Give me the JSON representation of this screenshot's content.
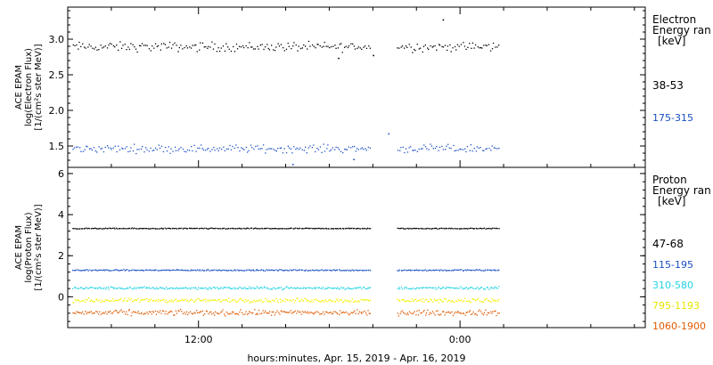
{
  "chart_data": [
    {
      "type": "scatter",
      "ylabel_lines": [
        "ACE EPAM",
        "log(Electron Flux)",
        "[1/(cm²s ster MeV)]"
      ],
      "ylim": [
        1.2,
        3.45
      ],
      "yticks": [
        1.5,
        2.0,
        2.5,
        3.0
      ],
      "ytick_labels": [
        "1.5",
        "2.0",
        "2.5",
        "3.0"
      ],
      "legend_title_lines": [
        "Electron",
        "Energy ran",
        "[keV]"
      ],
      "series": [
        {
          "name": "38-53",
          "color": "#000000",
          "mean": 2.9,
          "spread": 0.06,
          "outliers": [
            [
              18.4,
              2.74
            ],
            [
              20.0,
              2.78
            ],
            [
              23.2,
              3.28
            ]
          ]
        },
        {
          "name": "175-315",
          "color": "#1a4fc4",
          "mean": 1.47,
          "spread": 0.05,
          "outliers": [
            [
              16.3,
              1.25
            ],
            [
              20.7,
              1.68
            ],
            [
              19.1,
              1.32
            ]
          ]
        }
      ]
    },
    {
      "type": "scatter",
      "ylabel_lines": [
        "ACE EPAM",
        "log(Proton Flux)",
        "[1/(cm²s ster MeV)]"
      ],
      "ylim": [
        -1.5,
        6.3
      ],
      "yticks": [
        0,
        2,
        4,
        6
      ],
      "ytick_labels": [
        "0",
        "2",
        "4",
        "6"
      ],
      "legend_title_lines": [
        "Proton",
        "Energy ran",
        "[keV]"
      ],
      "series": [
        {
          "name": "47-68",
          "color": "#000000",
          "mean": 3.35,
          "spread": 0.02
        },
        {
          "name": "115-195",
          "color": "#1a4fc4",
          "mean": 1.32,
          "spread": 0.03
        },
        {
          "name": "310-580",
          "color": "#22d4e0",
          "mean": 0.45,
          "spread": 0.06
        },
        {
          "name": "795-1193",
          "color": "#f2f200",
          "mean": -0.15,
          "spread": 0.09
        },
        {
          "name": "1060-1900",
          "color": "#e05a00",
          "mean": -0.75,
          "spread": 0.12
        }
      ]
    }
  ],
  "x_axis": {
    "xlim": [
      6.0,
      32.5
    ],
    "tick_hours": [
      12,
      24
    ],
    "tick_labels": [
      "12:00",
      "0:00"
    ],
    "data_start": 6.2,
    "gap_start": 19.9,
    "gap_end": 21.1,
    "data_end": 25.8,
    "title": "hours:minutes, Apr. 15, 2019 - Apr. 16, 2019"
  }
}
